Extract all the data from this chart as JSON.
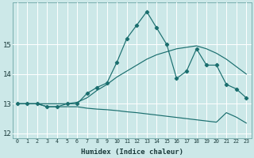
{
  "title": "",
  "xlabel": "Humidex (Indice chaleur)",
  "bg_color": "#cce8e8",
  "grid_color": "#ffffff",
  "line_color": "#1a6e6e",
  "xlim": [
    -0.5,
    23.5
  ],
  "ylim": [
    11.85,
    16.4
  ],
  "yticks": [
    12,
    13,
    14,
    15
  ],
  "xticks": [
    0,
    1,
    2,
    3,
    4,
    5,
    6,
    7,
    8,
    9,
    10,
    11,
    12,
    13,
    14,
    15,
    16,
    17,
    18,
    19,
    20,
    21,
    22,
    23
  ],
  "series": {
    "line_rising": {
      "x": [
        0,
        1,
        2,
        3,
        4,
        5,
        6,
        7,
        8,
        9,
        10,
        11,
        12,
        13,
        14,
        15,
        16,
        17,
        18,
        19,
        20,
        21,
        22,
        23
      ],
      "y": [
        13.0,
        13.0,
        13.0,
        13.0,
        13.0,
        13.0,
        13.05,
        13.2,
        13.45,
        13.65,
        13.9,
        14.1,
        14.3,
        14.5,
        14.65,
        14.75,
        14.85,
        14.9,
        14.95,
        14.85,
        14.7,
        14.5,
        14.25,
        14.0
      ]
    },
    "line_falling": {
      "x": [
        0,
        1,
        2,
        3,
        4,
        5,
        6,
        7,
        8,
        9,
        10,
        11,
        12,
        13,
        14,
        15,
        16,
        17,
        18,
        19,
        20,
        21,
        22,
        23
      ],
      "y": [
        13.0,
        13.0,
        13.0,
        12.9,
        12.9,
        12.9,
        12.9,
        12.85,
        12.82,
        12.8,
        12.77,
        12.73,
        12.7,
        12.66,
        12.62,
        12.58,
        12.54,
        12.5,
        12.46,
        12.42,
        12.38,
        12.7,
        12.55,
        12.35
      ]
    },
    "line_main": {
      "x": [
        0,
        1,
        2,
        3,
        4,
        5,
        6,
        7,
        8,
        9,
        10,
        11,
        12,
        13,
        14,
        15,
        16,
        17,
        18,
        19,
        20,
        21,
        22,
        23
      ],
      "y": [
        13.0,
        13.0,
        13.0,
        12.9,
        12.9,
        13.0,
        13.0,
        13.35,
        13.55,
        13.7,
        14.4,
        15.2,
        15.65,
        16.1,
        15.55,
        15.0,
        13.85,
        14.1,
        14.85,
        14.3,
        14.3,
        13.65,
        13.5,
        13.2
      ]
    }
  }
}
